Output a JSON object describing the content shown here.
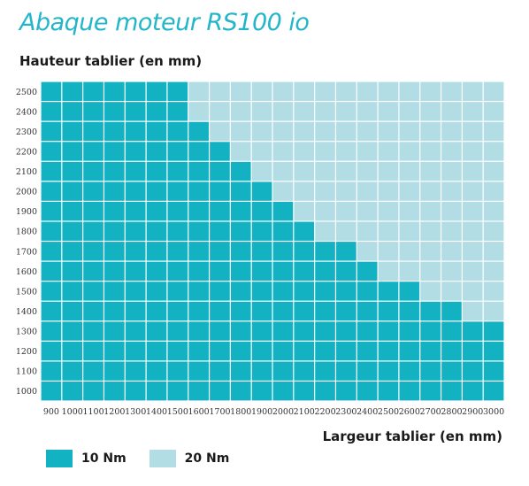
{
  "title": "Abaque moteur RS100 io",
  "colors": {
    "10 Nm": "#12b2c3",
    "20 Nm": "#b2dde4",
    "grid": "#ffffff"
  },
  "chart_data": {
    "type": "heatmap",
    "ylabel": "Hauteur tablier (en mm)",
    "xlabel": "Largeur tablier (en mm)",
    "x": [
      900,
      1000,
      1100,
      1200,
      1300,
      1400,
      1500,
      1600,
      1700,
      1800,
      1900,
      2000,
      2100,
      2200,
      2300,
      2400,
      2500,
      2600,
      2700,
      2800,
      2900,
      3000
    ],
    "y": [
      1000,
      1100,
      1200,
      1300,
      1400,
      1500,
      1600,
      1700,
      1800,
      1900,
      2000,
      2100,
      2200,
      2300,
      2400,
      2500
    ],
    "x_tick_labels": [
      "900",
      "1000",
      "1100",
      "1200",
      "1300",
      "1400",
      "1500",
      "1600",
      "1700",
      "1800",
      "1900",
      "2000",
      "2100",
      "2200",
      "2300",
      "2400",
      "2500",
      "2600",
      "2700",
      "2800",
      "2900",
      "3000"
    ],
    "y_tick_labels": [
      "1000",
      "1100",
      "1200",
      "1300",
      "1400",
      "1500",
      "1600",
      "1700",
      "1800",
      "1900",
      "2000",
      "2100",
      "2200",
      "2300",
      "2400",
      "2500"
    ],
    "legend": [
      "10 Nm",
      "20 Nm"
    ],
    "max_width_10Nm_by_height": {
      "1000": 3000,
      "1100": 3000,
      "1200": 3000,
      "1300": 3000,
      "1400": 2800,
      "1500": 2600,
      "1600": 2400,
      "1700": 2300,
      "1800": 2100,
      "1900": 2000,
      "2000": 1900,
      "2100": 1800,
      "2200": 1700,
      "2300": 1600,
      "2400": 1500,
      "2500": 1500
    },
    "values_note_unused": ""
  }
}
